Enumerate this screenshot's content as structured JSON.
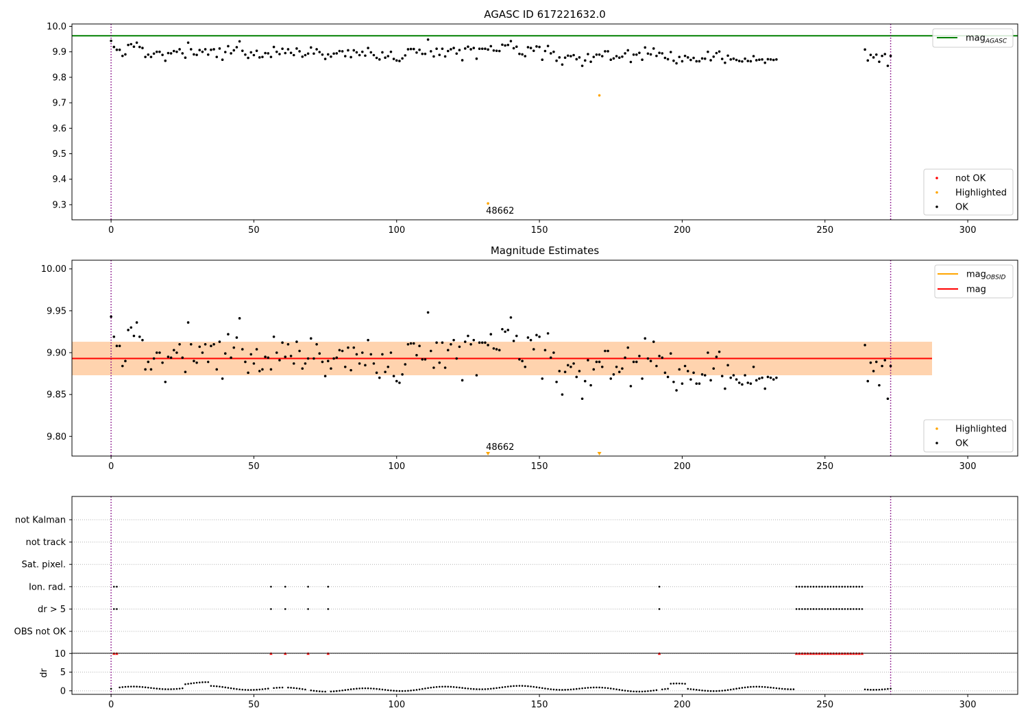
{
  "chart_data": [
    {
      "type": "scatter",
      "title": "AGASC ID 617221632.0",
      "xlim": [
        -13.7,
        317.5
      ],
      "ylim": [
        9.2407,
        10.0093
      ],
      "xticks": [
        0,
        50,
        100,
        150,
        200,
        250,
        300
      ],
      "yticks": [
        9.3,
        9.4,
        9.5,
        9.6,
        9.7,
        9.8,
        9.9,
        10.0
      ],
      "reference_line": {
        "name": "mag_AGASC",
        "value": 9.963,
        "color": "#008000"
      },
      "vlines": [
        0,
        273
      ],
      "legend_upper": [
        {
          "label": "mag",
          "subscript": "AGASC",
          "color": "#008000",
          "kind": "line"
        }
      ],
      "legend_lower": [
        {
          "label": "not OK",
          "color": "#ff0000",
          "kind": "point"
        },
        {
          "label": "Highlighted",
          "color": "#ffa500",
          "kind": "point"
        },
        {
          "label": "OK",
          "color": "#000000",
          "kind": "point"
        }
      ],
      "highlighted_points": [
        {
          "x": 132,
          "y": 9.305,
          "label": "48662"
        },
        {
          "x": 171,
          "y": 9.729,
          "label": ""
        }
      ],
      "ok_x_start": 0,
      "ok_values": [
        9.943,
        9.919,
        9.908,
        9.908,
        9.884,
        9.89,
        9.927,
        9.93,
        9.92,
        9.936,
        9.919,
        9.915,
        9.88,
        9.889,
        9.88,
        9.893,
        9.9,
        9.9,
        9.888,
        9.865,
        9.895,
        9.894,
        9.903,
        9.9,
        9.91,
        9.894,
        9.877,
        9.936,
        9.91,
        9.89,
        9.888,
        9.907,
        9.9,
        9.91,
        9.889,
        9.908,
        9.91,
        9.88,
        9.913,
        9.869,
        9.899,
        9.922,
        9.894,
        9.906,
        9.918,
        9.941,
        9.904,
        9.889,
        9.876,
        9.898,
        9.887,
        9.904,
        9.878,
        9.88,
        9.895,
        9.894,
        9.88,
        9.919,
        9.9,
        9.891,
        9.912,
        9.895,
        9.91,
        9.896,
        9.887,
        9.913,
        9.902,
        9.881,
        9.887,
        9.893,
        9.917,
        9.893,
        9.91,
        9.899,
        9.889,
        9.872,
        9.89,
        9.881,
        9.893,
        9.894,
        9.903,
        9.902,
        9.883,
        9.906,
        9.879,
        9.906,
        9.898,
        9.887,
        9.9,
        9.885,
        9.915,
        9.898,
        9.887,
        9.876,
        9.87,
        9.898,
        9.877,
        9.883,
        9.9,
        9.872,
        9.866,
        9.864,
        9.874,
        9.886,
        9.91,
        9.911,
        9.911,
        9.897,
        9.908,
        9.892,
        9.892,
        9.948,
        9.902,
        9.882,
        9.912,
        9.888,
        9.912,
        9.882,
        9.903,
        9.91,
        9.915,
        9.893,
        9.907,
        9.867,
        9.913,
        9.92,
        9.91,
        9.915,
        9.873,
        9.912,
        9.912,
        9.912,
        9.909,
        9.922,
        9.905,
        9.904,
        9.903,
        9.928,
        9.925,
        9.927,
        9.942,
        9.914,
        9.92,
        9.892,
        9.89,
        9.883,
        9.918,
        9.915,
        9.904,
        9.921,
        9.919,
        9.869,
        9.903,
        9.923,
        9.894,
        9.9,
        9.865,
        9.878,
        9.85,
        9.877,
        9.885,
        9.883,
        9.887,
        9.871,
        9.878,
        9.845,
        9.866,
        9.891,
        9.861,
        9.88,
        9.889,
        9.889,
        9.883,
        9.902,
        9.902,
        9.869,
        9.874,
        9.883,
        9.877,
        9.881,
        9.894,
        9.906,
        9.86,
        9.889,
        9.889,
        9.896,
        9.869,
        9.917,
        9.893,
        9.89,
        9.913,
        9.884,
        9.896,
        9.894,
        9.876,
        9.871,
        9.899,
        9.865,
        9.855,
        9.88,
        9.863,
        9.884,
        9.878,
        9.868,
        9.876,
        9.863,
        9.863,
        9.874,
        9.873,
        9.9,
        9.867,
        9.881,
        9.895,
        9.901,
        9.872,
        9.857,
        9.885,
        9.87,
        9.873,
        9.868,
        9.864,
        9.862,
        9.873,
        9.864,
        9.863,
        9.883,
        9.867,
        9.869,
        9.87,
        9.857,
        9.871,
        9.87,
        9.868,
        9.87
      ],
      "ok_tail_x_start": 264,
      "ok_tail_values": [
        9.909,
        9.866,
        9.888,
        9.878,
        9.889,
        9.861,
        9.884,
        9.891,
        9.845,
        9.884
      ]
    },
    {
      "type": "scatter",
      "title": "Magnitude Estimates",
      "xlim": [
        -13.7,
        317.5
      ],
      "ylim": [
        9.7765,
        10.0104
      ],
      "xticks": [
        0,
        50,
        100,
        150,
        200,
        250,
        300
      ],
      "yticks": [
        9.8,
        9.85,
        9.9,
        9.95,
        10.0
      ],
      "mean_line": {
        "name": "mag",
        "value": 9.893,
        "color": "#ff0000"
      },
      "band_inner": [
        9.873,
        9.913
      ],
      "band_outer": [
        9.873,
        9.913
      ],
      "band_x": [
        -13.7,
        287.5
      ],
      "vlines": [
        0,
        273
      ],
      "legend_upper": [
        {
          "label": "mag",
          "subscript": "OBSID",
          "color": "#ffa500",
          "kind": "line"
        },
        {
          "label": "mag",
          "subscript": "",
          "color": "#ff0000",
          "kind": "line"
        }
      ],
      "legend_lower": [
        {
          "label": "Highlighted",
          "color": "#ffa500",
          "kind": "point"
        },
        {
          "label": "OK",
          "color": "#000000",
          "kind": "point"
        }
      ],
      "offscale_markers": [
        {
          "x": 132,
          "label": "48662"
        },
        {
          "x": 171,
          "label": ""
        }
      ]
    },
    {
      "type": "scatter",
      "title": "",
      "xlim": [
        -13.7,
        317.5
      ],
      "xticks": [
        0,
        50,
        100,
        150,
        200,
        250,
        300
      ],
      "flag_rows": [
        "not Kalman",
        "not track",
        "Sat. pixel.",
        "Ion. rad.",
        "dr > 5",
        "OBS not OK"
      ],
      "flag_points": {
        "Ion. rad.": [
          1,
          2,
          56,
          61,
          69,
          76,
          192,
          240,
          241,
          242,
          243,
          244,
          245,
          246,
          247,
          248,
          249,
          250,
          251,
          252,
          253,
          254,
          255,
          256,
          257,
          258,
          259,
          260,
          261,
          262,
          263
        ],
        "dr > 5": [
          1,
          2,
          56,
          61,
          69,
          76,
          192,
          240,
          241,
          242,
          243,
          244,
          245,
          246,
          247,
          248,
          249,
          250,
          251,
          252,
          253,
          254,
          255,
          256,
          257,
          258,
          259,
          260,
          261,
          262,
          263
        ]
      },
      "dr_ylabel": "dr",
      "dr_yticks": [
        0,
        5,
        10
      ],
      "dr_ylim": [
        -0.4,
        10.6
      ],
      "dr_clipped_x": [
        1,
        2,
        56,
        61,
        69,
        76,
        192,
        240,
        241,
        242,
        243,
        244,
        245,
        246,
        247,
        248,
        249,
        250,
        251,
        252,
        253,
        254,
        255,
        256,
        257,
        258,
        259,
        260,
        261,
        262,
        263
      ],
      "dr_clipped_value": 10,
      "vlines": [
        0,
        273
      ]
    }
  ]
}
